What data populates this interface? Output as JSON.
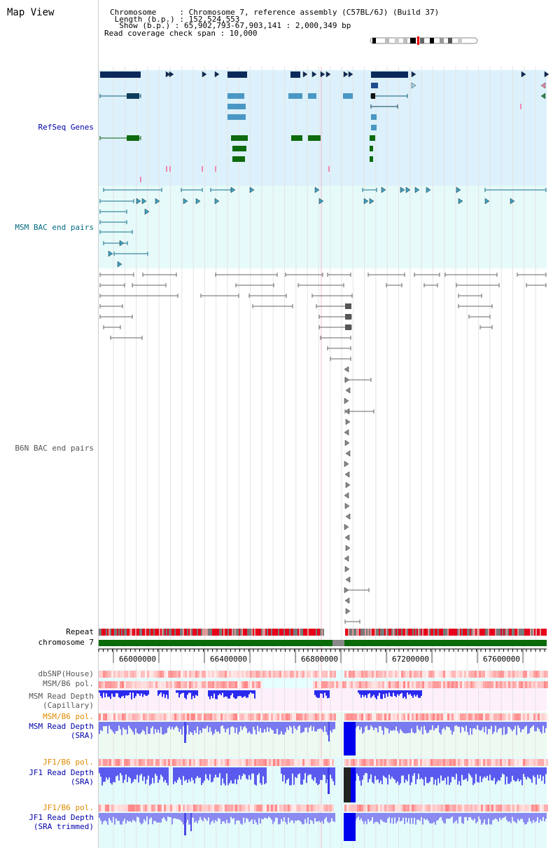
{
  "header": {
    "title": "Map View",
    "info_lines": [
      "Chromosome     : Chromosome 7, reference assembly (C57BL/6J) (Build 37)",
      " Length (b.p.) : 152,524,553",
      "  Show (b.p.) : 65,902,793-67,903,141 : 2,000,349 bp",
      "Read coverage check span : 10,000"
    ]
  },
  "tracks": {
    "refseq": "RefSeq Genes",
    "msm_bac": "MSM BAC end pairs",
    "b6n_bac": "B6N BAC end pairs",
    "repeat": "Repeat",
    "chromosome": "chromosome 7",
    "dbsnp": "dbSNP(House)",
    "msm_b6_pol_1": "MSM/B6 pol.",
    "msm_depth_cap_1": "MSM Read Depth",
    "msm_depth_cap_2": "(Capillary)",
    "msm_b6_pol_2": "MSM/B6 pol.",
    "msm_depth_sra_1": "MSM Read Depth",
    "msm_depth_sra_2": "(SRA)",
    "jf1_b6_pol_1": "JF1/B6 pol.",
    "jf1_depth_sra_1": "JF1 Read Depth",
    "jf1_depth_sra_2": "(SRA)",
    "jf1_b6_pol_2": "JF1/B6 pol.",
    "jf1_depth_trim_1": "JF1 Read Depth",
    "jf1_depth_trim_2": "(SRA trimmed)"
  },
  "axis": {
    "ticks": [
      "66000000",
      "66400000",
      "66800000",
      "67200000",
      "67600000"
    ]
  },
  "colors": {
    "refseq_bg": "#dcf1fb",
    "msm_bac_bg": "#e6fafa",
    "track_label_blue": "#0000aa",
    "track_label_teal": "#006b80",
    "track_label_gray": "#555555",
    "track_label_orange": "#e08a00",
    "chromosome_bar": "#0a6b0a"
  }
}
